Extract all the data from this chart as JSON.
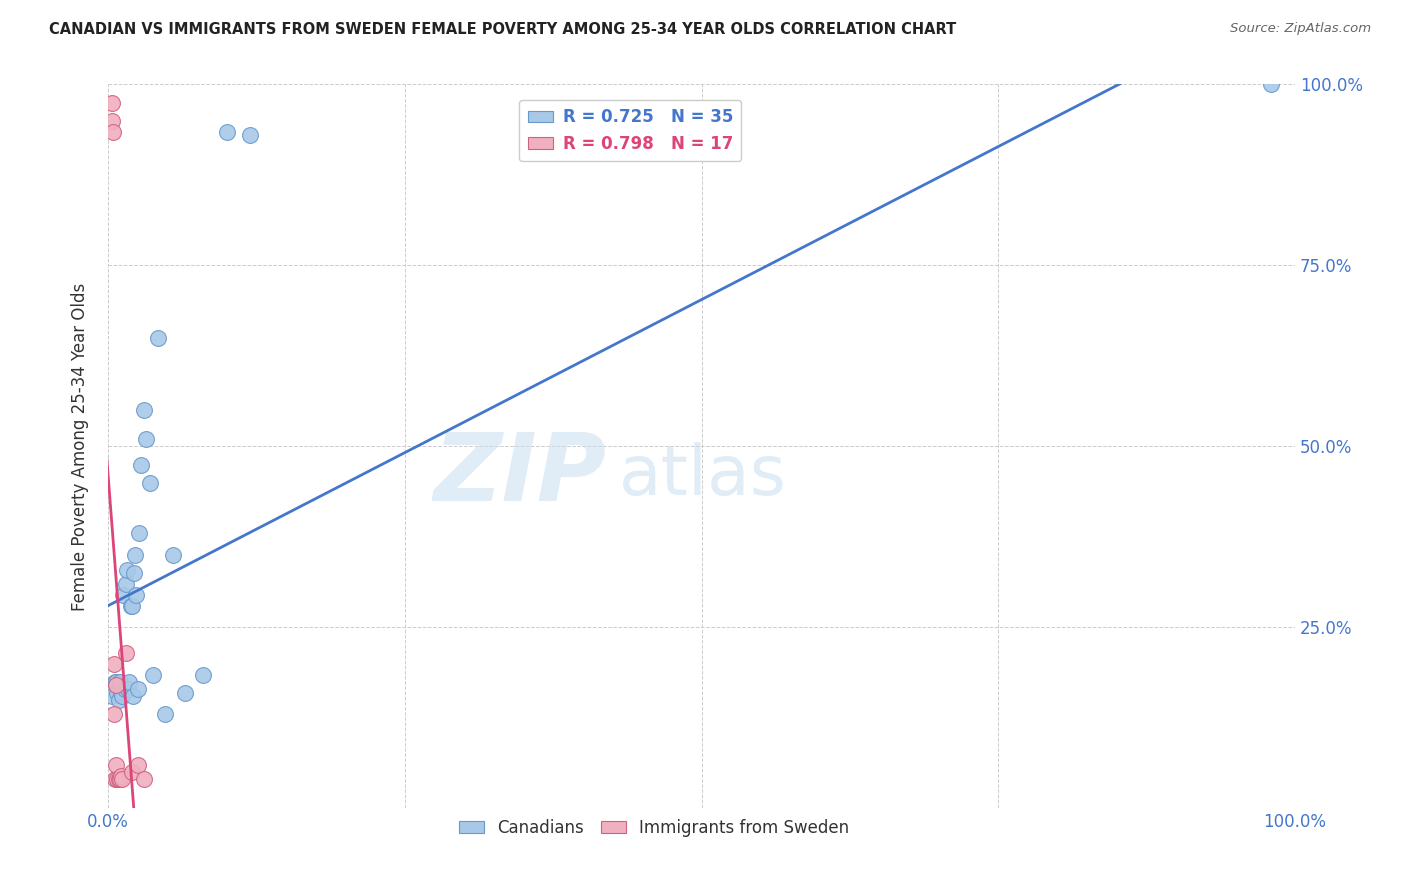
{
  "title": "CANADIAN VS IMMIGRANTS FROM SWEDEN FEMALE POVERTY AMONG 25-34 YEAR OLDS CORRELATION CHART",
  "source": "Source: ZipAtlas.com",
  "ylabel": "Female Poverty Among 25-34 Year Olds",
  "xlim": [
    0,
    1.0
  ],
  "ylim": [
    0,
    1.0
  ],
  "xticks": [
    0.0,
    0.25,
    0.5,
    0.75,
    1.0
  ],
  "yticks": [
    0.0,
    0.25,
    0.5,
    0.75,
    1.0
  ],
  "xticklabels_bottom": [
    "0.0%",
    "",
    "",
    "",
    "100.0%"
  ],
  "yticklabels_right": [
    "",
    "25.0%",
    "50.0%",
    "75.0%",
    "100.0%"
  ],
  "watermark_line1": "ZIP",
  "watermark_line2": "atlas",
  "canadians_color": "#a8c8e8",
  "canadians_edge": "#6699cc",
  "immigrants_color": "#f0b0c0",
  "immigrants_edge": "#d06080",
  "trendline_canadians_color": "#4477cc",
  "trendline_immigrants_color": "#dd4477",
  "legend_R_canadians": "R = 0.725",
  "legend_N_canadians": "N = 35",
  "legend_R_immigrants": "R = 0.798",
  "legend_N_immigrants": "N = 17",
  "canadians_x": [
    0.003,
    0.006,
    0.007,
    0.008,
    0.009,
    0.01,
    0.011,
    0.012,
    0.013,
    0.014,
    0.015,
    0.016,
    0.017,
    0.018,
    0.019,
    0.02,
    0.021,
    0.022,
    0.023,
    0.024,
    0.025,
    0.026,
    0.028,
    0.03,
    0.032,
    0.035,
    0.038,
    0.042,
    0.048,
    0.055,
    0.065,
    0.08,
    0.1,
    0.12,
    0.98
  ],
  "canadians_y": [
    0.155,
    0.175,
    0.175,
    0.16,
    0.15,
    0.175,
    0.16,
    0.155,
    0.295,
    0.165,
    0.31,
    0.33,
    0.165,
    0.175,
    0.28,
    0.28,
    0.155,
    0.325,
    0.35,
    0.295,
    0.165,
    0.38,
    0.475,
    0.55,
    0.51,
    0.45,
    0.185,
    0.65,
    0.13,
    0.35,
    0.16,
    0.185,
    0.935,
    0.93,
    1.0
  ],
  "immigrants_x": [
    0.003,
    0.003,
    0.004,
    0.005,
    0.005,
    0.006,
    0.007,
    0.007,
    0.008,
    0.009,
    0.01,
    0.011,
    0.012,
    0.015,
    0.02,
    0.025,
    0.03
  ],
  "immigrants_y": [
    0.975,
    0.95,
    0.935,
    0.13,
    0.2,
    0.04,
    0.06,
    0.17,
    0.04,
    0.04,
    0.04,
    0.045,
    0.04,
    0.215,
    0.05,
    0.06,
    0.04
  ],
  "trendline_c_x0": 0.0,
  "trendline_c_x1": 1.0,
  "trendline_i_x0": -0.005,
  "trendline_i_x1": 0.28
}
